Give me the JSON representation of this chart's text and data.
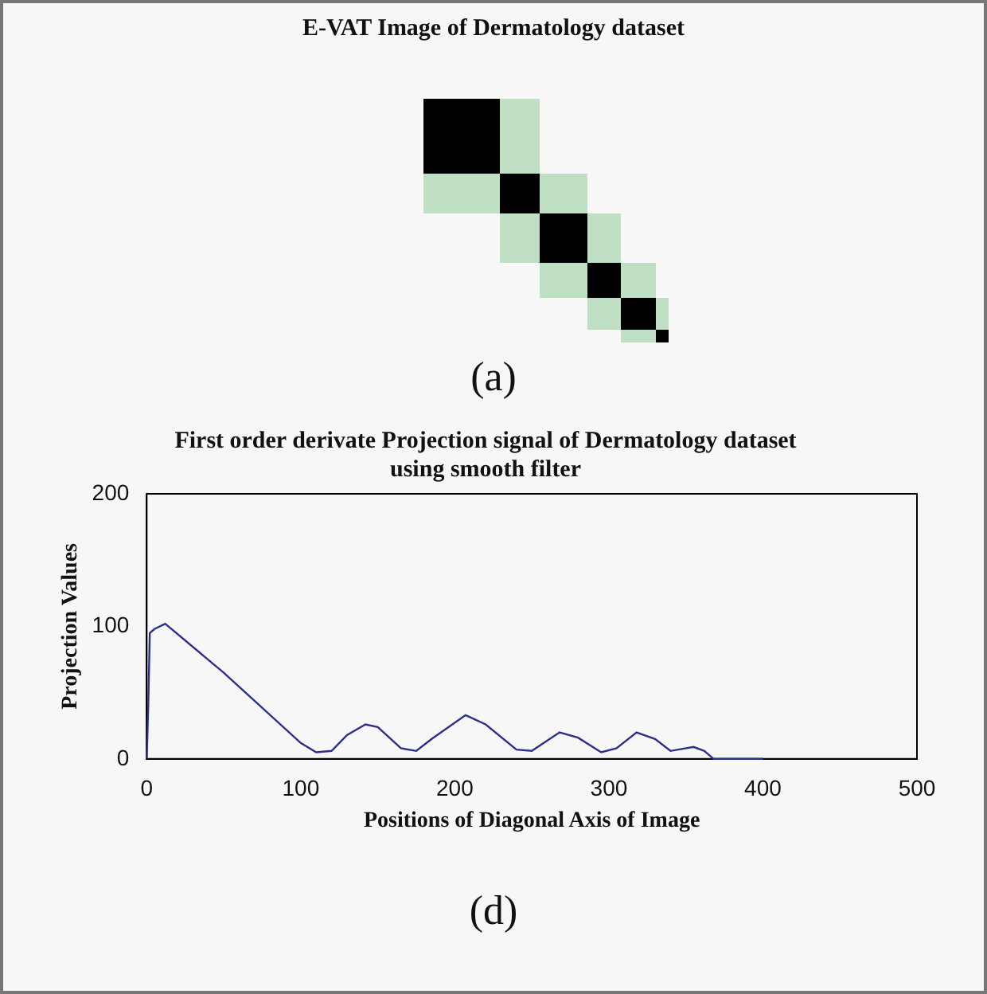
{
  "chart_data": {
    "type": "line",
    "title": "First order derivate Projection signal of Dermatology dataset\nusing smooth filter",
    "xlabel": "Positions of Diagonal Axis of Image",
    "ylabel": "Projection Values",
    "annotations": [
      "E-VAT Image of Dermatology dataset",
      "(a)",
      "(d)"
    ],
    "series": [
      {
        "color": "#2b2f8a",
        "x": [
          0,
          1,
          2,
          5,
          12,
          50,
          100,
          110,
          120,
          130,
          142,
          150,
          165,
          175,
          185,
          207,
          220,
          240,
          250,
          268,
          280,
          295,
          305,
          318,
          330,
          340,
          355,
          362,
          368,
          400
        ],
        "values": [
          0,
          40,
          95,
          98,
          102,
          65,
          12,
          5,
          6,
          18,
          26,
          24,
          8,
          6,
          15,
          33,
          26,
          7,
          6,
          20,
          16,
          5,
          8,
          20,
          15,
          6,
          9,
          6,
          0,
          0
        ]
      }
    ],
    "xlim": [
      0,
      500
    ],
    "xticks": [
      0,
      100,
      200,
      300,
      400,
      500
    ],
    "ylim": [
      0,
      200
    ],
    "yticks": [
      0,
      100,
      200
    ],
    "grid": false,
    "legend": false,
    "marker": "none",
    "line_style": "solid"
  }
}
